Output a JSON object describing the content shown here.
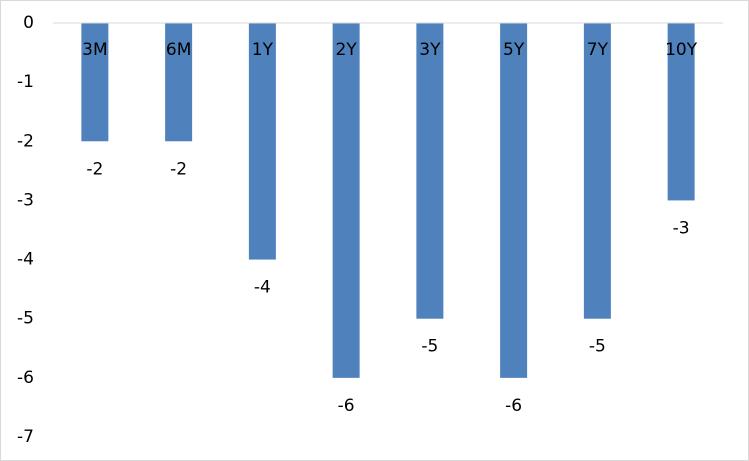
{
  "chart_data": {
    "type": "bar",
    "categories": [
      "3M",
      "6M",
      "1Y",
      "2Y",
      "3Y",
      "5Y",
      "7Y",
      "10Y"
    ],
    "values": [
      -2,
      -2,
      -4,
      -6,
      -5,
      -6,
      -5,
      -3
    ],
    "color": "#4f81bd",
    "ylim": [
      -7,
      0
    ],
    "yticks": [
      0,
      -1,
      -2,
      -3,
      -4,
      -5,
      -6,
      -7
    ],
    "grid": false
  }
}
